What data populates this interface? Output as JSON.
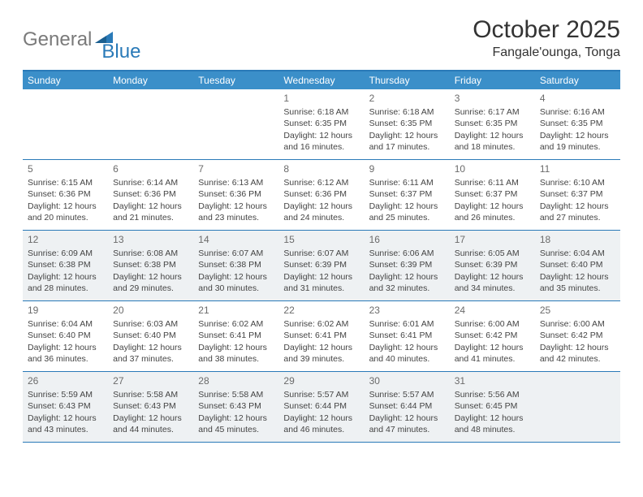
{
  "logo": {
    "gray": "General",
    "blue": "Blue"
  },
  "title": "October 2025",
  "location": "Fangale'ounga, Tonga",
  "colors": {
    "header_bg": "#3b8fc9",
    "header_border": "#2a7ab8",
    "shade_bg": "#eef1f3",
    "text": "#333333",
    "logo_gray": "#7a7a7a",
    "logo_blue": "#2a7ab8"
  },
  "day_headers": [
    "Sunday",
    "Monday",
    "Tuesday",
    "Wednesday",
    "Thursday",
    "Friday",
    "Saturday"
  ],
  "weeks": [
    {
      "shade": false,
      "cells": [
        {
          "n": "",
          "sr": "",
          "ss": "",
          "dl": ""
        },
        {
          "n": "",
          "sr": "",
          "ss": "",
          "dl": ""
        },
        {
          "n": "",
          "sr": "",
          "ss": "",
          "dl": ""
        },
        {
          "n": "1",
          "sr": "Sunrise: 6:18 AM",
          "ss": "Sunset: 6:35 PM",
          "dl": "Daylight: 12 hours and 16 minutes."
        },
        {
          "n": "2",
          "sr": "Sunrise: 6:18 AM",
          "ss": "Sunset: 6:35 PM",
          "dl": "Daylight: 12 hours and 17 minutes."
        },
        {
          "n": "3",
          "sr": "Sunrise: 6:17 AM",
          "ss": "Sunset: 6:35 PM",
          "dl": "Daylight: 12 hours and 18 minutes."
        },
        {
          "n": "4",
          "sr": "Sunrise: 6:16 AM",
          "ss": "Sunset: 6:35 PM",
          "dl": "Daylight: 12 hours and 19 minutes."
        }
      ]
    },
    {
      "shade": false,
      "cells": [
        {
          "n": "5",
          "sr": "Sunrise: 6:15 AM",
          "ss": "Sunset: 6:36 PM",
          "dl": "Daylight: 12 hours and 20 minutes."
        },
        {
          "n": "6",
          "sr": "Sunrise: 6:14 AM",
          "ss": "Sunset: 6:36 PM",
          "dl": "Daylight: 12 hours and 21 minutes."
        },
        {
          "n": "7",
          "sr": "Sunrise: 6:13 AM",
          "ss": "Sunset: 6:36 PM",
          "dl": "Daylight: 12 hours and 23 minutes."
        },
        {
          "n": "8",
          "sr": "Sunrise: 6:12 AM",
          "ss": "Sunset: 6:36 PM",
          "dl": "Daylight: 12 hours and 24 minutes."
        },
        {
          "n": "9",
          "sr": "Sunrise: 6:11 AM",
          "ss": "Sunset: 6:37 PM",
          "dl": "Daylight: 12 hours and 25 minutes."
        },
        {
          "n": "10",
          "sr": "Sunrise: 6:11 AM",
          "ss": "Sunset: 6:37 PM",
          "dl": "Daylight: 12 hours and 26 minutes."
        },
        {
          "n": "11",
          "sr": "Sunrise: 6:10 AM",
          "ss": "Sunset: 6:37 PM",
          "dl": "Daylight: 12 hours and 27 minutes."
        }
      ]
    },
    {
      "shade": true,
      "cells": [
        {
          "n": "12",
          "sr": "Sunrise: 6:09 AM",
          "ss": "Sunset: 6:38 PM",
          "dl": "Daylight: 12 hours and 28 minutes."
        },
        {
          "n": "13",
          "sr": "Sunrise: 6:08 AM",
          "ss": "Sunset: 6:38 PM",
          "dl": "Daylight: 12 hours and 29 minutes."
        },
        {
          "n": "14",
          "sr": "Sunrise: 6:07 AM",
          "ss": "Sunset: 6:38 PM",
          "dl": "Daylight: 12 hours and 30 minutes."
        },
        {
          "n": "15",
          "sr": "Sunrise: 6:07 AM",
          "ss": "Sunset: 6:39 PM",
          "dl": "Daylight: 12 hours and 31 minutes."
        },
        {
          "n": "16",
          "sr": "Sunrise: 6:06 AM",
          "ss": "Sunset: 6:39 PM",
          "dl": "Daylight: 12 hours and 32 minutes."
        },
        {
          "n": "17",
          "sr": "Sunrise: 6:05 AM",
          "ss": "Sunset: 6:39 PM",
          "dl": "Daylight: 12 hours and 34 minutes."
        },
        {
          "n": "18",
          "sr": "Sunrise: 6:04 AM",
          "ss": "Sunset: 6:40 PM",
          "dl": "Daylight: 12 hours and 35 minutes."
        }
      ]
    },
    {
      "shade": false,
      "cells": [
        {
          "n": "19",
          "sr": "Sunrise: 6:04 AM",
          "ss": "Sunset: 6:40 PM",
          "dl": "Daylight: 12 hours and 36 minutes."
        },
        {
          "n": "20",
          "sr": "Sunrise: 6:03 AM",
          "ss": "Sunset: 6:40 PM",
          "dl": "Daylight: 12 hours and 37 minutes."
        },
        {
          "n": "21",
          "sr": "Sunrise: 6:02 AM",
          "ss": "Sunset: 6:41 PM",
          "dl": "Daylight: 12 hours and 38 minutes."
        },
        {
          "n": "22",
          "sr": "Sunrise: 6:02 AM",
          "ss": "Sunset: 6:41 PM",
          "dl": "Daylight: 12 hours and 39 minutes."
        },
        {
          "n": "23",
          "sr": "Sunrise: 6:01 AM",
          "ss": "Sunset: 6:41 PM",
          "dl": "Daylight: 12 hours and 40 minutes."
        },
        {
          "n": "24",
          "sr": "Sunrise: 6:00 AM",
          "ss": "Sunset: 6:42 PM",
          "dl": "Daylight: 12 hours and 41 minutes."
        },
        {
          "n": "25",
          "sr": "Sunrise: 6:00 AM",
          "ss": "Sunset: 6:42 PM",
          "dl": "Daylight: 12 hours and 42 minutes."
        }
      ]
    },
    {
      "shade": true,
      "cells": [
        {
          "n": "26",
          "sr": "Sunrise: 5:59 AM",
          "ss": "Sunset: 6:43 PM",
          "dl": "Daylight: 12 hours and 43 minutes."
        },
        {
          "n": "27",
          "sr": "Sunrise: 5:58 AM",
          "ss": "Sunset: 6:43 PM",
          "dl": "Daylight: 12 hours and 44 minutes."
        },
        {
          "n": "28",
          "sr": "Sunrise: 5:58 AM",
          "ss": "Sunset: 6:43 PM",
          "dl": "Daylight: 12 hours and 45 minutes."
        },
        {
          "n": "29",
          "sr": "Sunrise: 5:57 AM",
          "ss": "Sunset: 6:44 PM",
          "dl": "Daylight: 12 hours and 46 minutes."
        },
        {
          "n": "30",
          "sr": "Sunrise: 5:57 AM",
          "ss": "Sunset: 6:44 PM",
          "dl": "Daylight: 12 hours and 47 minutes."
        },
        {
          "n": "31",
          "sr": "Sunrise: 5:56 AM",
          "ss": "Sunset: 6:45 PM",
          "dl": "Daylight: 12 hours and 48 minutes."
        },
        {
          "n": "",
          "sr": "",
          "ss": "",
          "dl": ""
        }
      ]
    }
  ]
}
